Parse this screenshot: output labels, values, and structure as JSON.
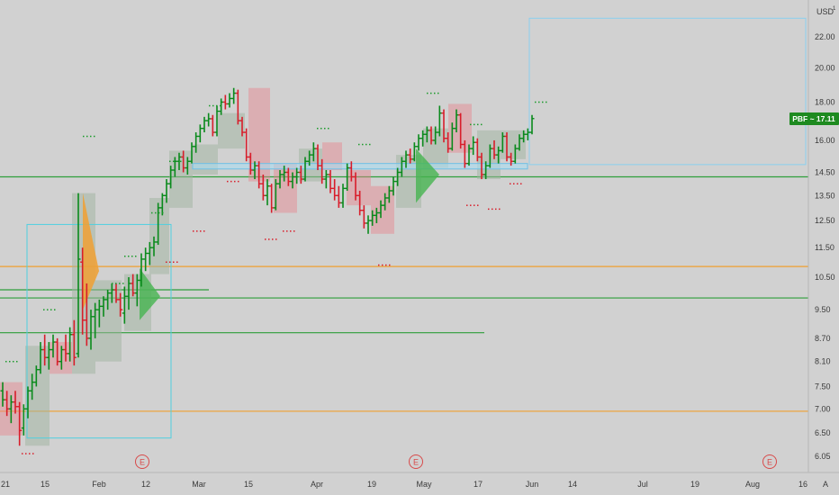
{
  "chart_data": {
    "type": "bar",
    "currency": "USD",
    "currency_badge": "1",
    "symbol": "PBF",
    "last_price_label": "PBF ~ 17.11",
    "last_price": 17.11,
    "y_axis": {
      "scale": "log",
      "ylim": [
        5.85,
        24.5
      ],
      "ticks": [
        "22.00",
        "20.00",
        "18.00",
        "16.00",
        "14.50",
        "13.50",
        "12.50",
        "11.50",
        "10.50",
        "9.50",
        "8.70",
        "8.10",
        "7.50",
        "7.00",
        "6.50",
        "6.05"
      ]
    },
    "x_axis": {
      "labels": [
        "21",
        "15",
        "Feb",
        "12",
        "Mar",
        "15",
        "Apr",
        "19",
        "May",
        "17",
        "Jun",
        "14",
        "Jul",
        "19",
        "Aug",
        "16",
        "A"
      ]
    },
    "earnings_markers": [
      "E",
      "E",
      "E"
    ],
    "horizontal_levels": [
      {
        "price": 14.3,
        "color": "#2e9e3a"
      },
      {
        "price": 10.85,
        "color": "#f0a030"
      },
      {
        "price": 10.1,
        "color": "#2e9e3a"
      },
      {
        "price": 9.85,
        "color": "#2e9e3a"
      },
      {
        "price": 8.85,
        "color": "#2e9e3a"
      },
      {
        "price": 6.95,
        "color": "#f0a030"
      }
    ],
    "ohlc_bars": [
      [
        7.4,
        7.6,
        7.05,
        7.2,
        "up"
      ],
      [
        7.2,
        7.4,
        6.85,
        7.0,
        "dn"
      ],
      [
        7.0,
        7.3,
        6.7,
        7.15,
        "up"
      ],
      [
        7.15,
        7.4,
        6.9,
        7.05,
        "dn"
      ],
      [
        7.05,
        7.15,
        6.25,
        6.55,
        "dn"
      ],
      [
        6.6,
        7.1,
        6.45,
        7.0,
        "up"
      ],
      [
        7.0,
        7.5,
        6.8,
        7.4,
        "up"
      ],
      [
        7.4,
        7.8,
        7.2,
        7.6,
        "up"
      ],
      [
        7.6,
        8.0,
        7.5,
        7.9,
        "up"
      ],
      [
        7.9,
        8.6,
        7.8,
        8.4,
        "up"
      ],
      [
        8.4,
        8.8,
        8.0,
        8.2,
        "dn"
      ],
      [
        8.2,
        8.6,
        7.9,
        8.4,
        "up"
      ],
      [
        8.4,
        8.8,
        8.2,
        8.6,
        "up"
      ],
      [
        8.6,
        8.7,
        8.0,
        8.1,
        "dn"
      ],
      [
        8.1,
        8.5,
        7.9,
        8.4,
        "up"
      ],
      [
        8.4,
        8.8,
        8.1,
        8.3,
        "dn"
      ],
      [
        8.3,
        9.0,
        8.1,
        8.8,
        "up"
      ],
      [
        8.8,
        9.2,
        8.0,
        8.2,
        "dn"
      ],
      [
        8.3,
        13.6,
        8.2,
        11.1,
        "up"
      ],
      [
        11.0,
        11.5,
        8.8,
        9.2,
        "dn"
      ],
      [
        9.2,
        10.3,
        8.5,
        8.7,
        "dn"
      ],
      [
        8.7,
        9.5,
        8.4,
        9.3,
        "up"
      ],
      [
        9.3,
        9.7,
        8.7,
        9.5,
        "up"
      ],
      [
        9.5,
        9.8,
        9.0,
        9.6,
        "up"
      ],
      [
        9.6,
        9.9,
        9.3,
        9.8,
        "up"
      ],
      [
        9.8,
        10.1,
        9.5,
        10.0,
        "up"
      ],
      [
        10.0,
        10.3,
        9.7,
        10.1,
        "up"
      ],
      [
        10.1,
        10.3,
        9.7,
        9.8,
        "dn"
      ],
      [
        9.8,
        10.0,
        9.3,
        9.5,
        "dn"
      ],
      [
        9.4,
        10.2,
        9.1,
        9.9,
        "up"
      ],
      [
        9.9,
        10.5,
        9.5,
        10.3,
        "up"
      ],
      [
        10.3,
        10.6,
        9.9,
        10.0,
        "dn"
      ],
      [
        10.0,
        10.6,
        9.6,
        10.4,
        "up"
      ],
      [
        10.4,
        11.3,
        10.2,
        11.1,
        "up"
      ],
      [
        11.1,
        11.5,
        10.7,
        11.3,
        "up"
      ],
      [
        11.3,
        11.7,
        10.9,
        11.5,
        "up"
      ],
      [
        11.5,
        11.9,
        11.2,
        11.7,
        "up"
      ],
      [
        11.7,
        13.2,
        11.6,
        13.0,
        "up"
      ],
      [
        13.0,
        13.6,
        12.7,
        13.5,
        "up"
      ],
      [
        13.5,
        14.2,
        13.2,
        14.0,
        "up"
      ],
      [
        14.0,
        14.8,
        13.8,
        14.6,
        "up"
      ],
      [
        14.6,
        15.2,
        14.3,
        15.0,
        "up"
      ],
      [
        15.0,
        15.4,
        14.6,
        15.2,
        "up"
      ],
      [
        15.2,
        15.5,
        14.5,
        14.7,
        "dn"
      ],
      [
        14.7,
        15.2,
        14.4,
        15.0,
        "up"
      ],
      [
        15.0,
        15.9,
        14.9,
        15.7,
        "up"
      ],
      [
        15.7,
        16.4,
        15.4,
        16.2,
        "up"
      ],
      [
        16.2,
        16.8,
        15.9,
        16.6,
        "up"
      ],
      [
        16.6,
        17.2,
        16.4,
        17.0,
        "up"
      ],
      [
        17.0,
        17.4,
        16.7,
        17.1,
        "up"
      ],
      [
        17.1,
        17.3,
        16.2,
        16.4,
        "dn"
      ],
      [
        16.4,
        17.8,
        16.2,
        17.5,
        "up"
      ],
      [
        17.5,
        18.2,
        17.3,
        18.0,
        "up"
      ],
      [
        18.0,
        18.4,
        17.6,
        17.9,
        "dn"
      ],
      [
        17.9,
        18.5,
        17.7,
        18.2,
        "up"
      ],
      [
        18.2,
        18.8,
        17.9,
        18.5,
        "up"
      ],
      [
        18.5,
        18.7,
        16.8,
        17.0,
        "dn"
      ],
      [
        17.0,
        17.2,
        16.2,
        16.4,
        "dn"
      ],
      [
        16.4,
        16.6,
        15.0,
        15.2,
        "dn"
      ],
      [
        15.2,
        15.4,
        14.4,
        14.6,
        "dn"
      ],
      [
        14.6,
        15.0,
        14.2,
        14.8,
        "up"
      ],
      [
        14.8,
        15.0,
        13.8,
        14.0,
        "dn"
      ],
      [
        14.0,
        14.4,
        13.3,
        13.5,
        "dn"
      ],
      [
        13.5,
        14.2,
        13.1,
        13.9,
        "up"
      ],
      [
        13.9,
        14.0,
        12.8,
        13.0,
        "dn"
      ],
      [
        13.0,
        14.2,
        12.9,
        14.0,
        "up"
      ],
      [
        14.0,
        14.6,
        13.8,
        14.4,
        "up"
      ],
      [
        14.4,
        14.8,
        14.1,
        14.5,
        "up"
      ],
      [
        14.5,
        14.7,
        13.9,
        14.1,
        "dn"
      ],
      [
        14.1,
        14.5,
        13.8,
        14.3,
        "up"
      ],
      [
        14.3,
        14.7,
        14.0,
        14.5,
        "up"
      ],
      [
        14.5,
        14.8,
        14.0,
        14.2,
        "dn"
      ],
      [
        14.2,
        15.2,
        14.1,
        15.0,
        "up"
      ],
      [
        15.0,
        15.5,
        14.8,
        15.3,
        "up"
      ],
      [
        15.3,
        15.9,
        15.0,
        15.6,
        "up"
      ],
      [
        15.6,
        15.8,
        14.6,
        14.8,
        "dn"
      ],
      [
        14.8,
        15.1,
        14.0,
        14.2,
        "dn"
      ],
      [
        14.2,
        14.6,
        13.8,
        14.4,
        "up"
      ],
      [
        14.4,
        14.6,
        13.6,
        13.8,
        "dn"
      ],
      [
        13.8,
        14.2,
        13.3,
        13.5,
        "dn"
      ],
      [
        13.5,
        13.9,
        13.0,
        13.2,
        "dn"
      ],
      [
        13.2,
        14.0,
        13.0,
        13.8,
        "up"
      ],
      [
        13.8,
        14.9,
        13.7,
        14.7,
        "up"
      ],
      [
        14.7,
        15.0,
        14.1,
        14.3,
        "dn"
      ],
      [
        14.3,
        14.5,
        13.3,
        13.5,
        "dn"
      ],
      [
        13.5,
        13.7,
        12.7,
        12.9,
        "dn"
      ],
      [
        12.9,
        13.1,
        12.2,
        12.4,
        "dn"
      ],
      [
        12.4,
        12.7,
        12.0,
        12.5,
        "up"
      ],
      [
        12.5,
        12.9,
        12.3,
        12.7,
        "up"
      ],
      [
        12.7,
        13.0,
        12.4,
        12.8,
        "up"
      ],
      [
        12.8,
        13.3,
        12.6,
        13.1,
        "up"
      ],
      [
        13.1,
        13.6,
        12.9,
        13.4,
        "up"
      ],
      [
        13.4,
        13.9,
        13.2,
        13.7,
        "up"
      ],
      [
        13.7,
        14.3,
        13.5,
        14.1,
        "up"
      ],
      [
        14.1,
        14.7,
        13.9,
        14.5,
        "up"
      ],
      [
        14.5,
        15.2,
        14.3,
        15.0,
        "up"
      ],
      [
        15.0,
        15.5,
        14.7,
        15.3,
        "up"
      ],
      [
        15.3,
        15.6,
        14.9,
        15.1,
        "dn"
      ],
      [
        15.1,
        15.9,
        15.0,
        15.7,
        "up"
      ],
      [
        15.7,
        16.3,
        15.5,
        16.1,
        "up"
      ],
      [
        16.1,
        16.5,
        15.7,
        16.3,
        "up"
      ],
      [
        16.3,
        16.7,
        15.9,
        16.5,
        "up"
      ],
      [
        16.5,
        16.7,
        15.8,
        16.0,
        "dn"
      ],
      [
        16.0,
        16.7,
        15.8,
        16.4,
        "up"
      ],
      [
        16.4,
        17.8,
        16.2,
        17.4,
        "up"
      ],
      [
        17.4,
        17.6,
        15.9,
        16.1,
        "dn"
      ],
      [
        16.1,
        16.4,
        15.4,
        15.6,
        "dn"
      ],
      [
        15.6,
        16.9,
        15.5,
        16.6,
        "up"
      ],
      [
        16.6,
        17.6,
        16.4,
        17.3,
        "up"
      ],
      [
        17.3,
        17.4,
        15.6,
        15.8,
        "dn"
      ],
      [
        15.8,
        16.0,
        14.7,
        14.9,
        "dn"
      ],
      [
        14.9,
        15.8,
        14.8,
        15.6,
        "up"
      ],
      [
        15.6,
        16.2,
        15.3,
        15.9,
        "up"
      ],
      [
        15.9,
        16.1,
        15.0,
        15.2,
        "dn"
      ],
      [
        15.2,
        15.4,
        14.2,
        14.4,
        "dn"
      ],
      [
        14.4,
        15.0,
        14.2,
        14.8,
        "up"
      ],
      [
        14.8,
        15.8,
        14.7,
        15.6,
        "up"
      ],
      [
        15.6,
        16.0,
        15.1,
        15.3,
        "dn"
      ],
      [
        15.3,
        15.7,
        14.9,
        15.5,
        "up"
      ],
      [
        15.5,
        16.4,
        15.4,
        16.2,
        "up"
      ],
      [
        16.2,
        16.4,
        15.0,
        15.2,
        "dn"
      ],
      [
        15.2,
        15.4,
        14.8,
        15.0,
        "dn"
      ],
      [
        15.0,
        15.8,
        14.9,
        15.6,
        "up"
      ],
      [
        15.6,
        16.3,
        15.5,
        16.1,
        "up"
      ],
      [
        16.1,
        16.5,
        15.9,
        16.3,
        "up"
      ],
      [
        16.3,
        16.6,
        16.0,
        16.4,
        "up"
      ],
      [
        16.4,
        17.3,
        16.3,
        17.11,
        "up"
      ]
    ]
  }
}
